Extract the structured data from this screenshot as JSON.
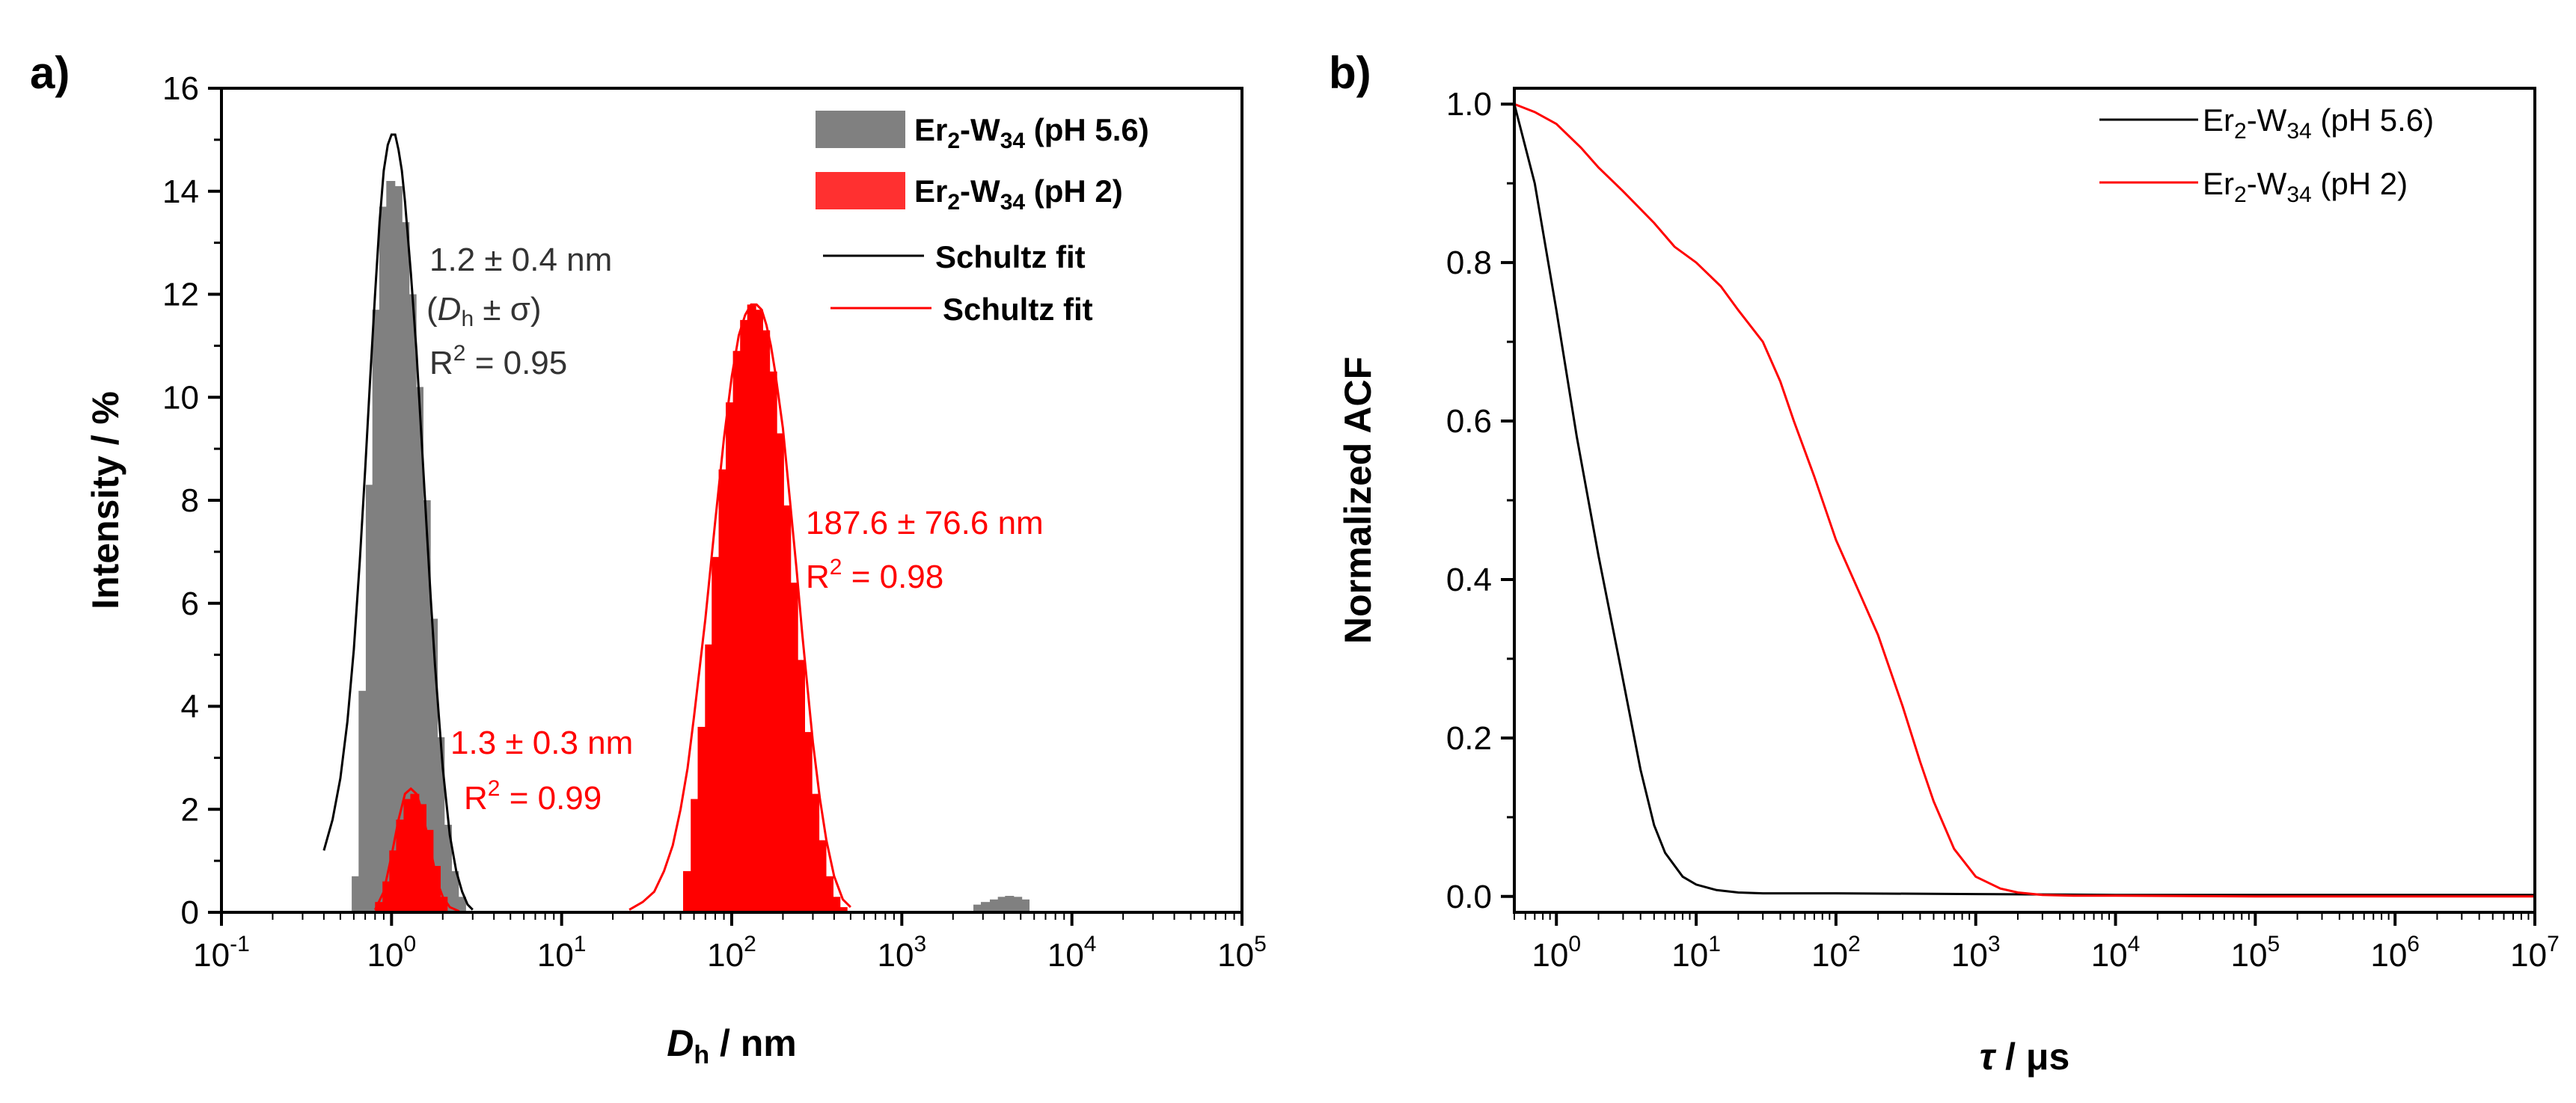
{
  "chart_data": [
    {
      "panel": "a)",
      "type": "bar",
      "xscale": "log",
      "xlim": [
        0.1,
        100000
      ],
      "ylim": [
        0,
        16
      ],
      "xlabel_main": "D",
      "xlabel_sub": "h",
      "xlabel_unit": " / nm",
      "ylabel": "Intensity / %",
      "xticks": [
        {
          "base": "10",
          "exp": "-1",
          "value": 0.1
        },
        {
          "base": "10",
          "exp": "0",
          "value": 1
        },
        {
          "base": "10",
          "exp": "1",
          "value": 10
        },
        {
          "base": "10",
          "exp": "2",
          "value": 100
        },
        {
          "base": "10",
          "exp": "3",
          "value": 1000
        },
        {
          "base": "10",
          "exp": "4",
          "value": 10000
        },
        {
          "base": "10",
          "exp": "5",
          "value": 100000
        }
      ],
      "yticks": [
        "0",
        "2",
        "4",
        "6",
        "8",
        "10",
        "12",
        "14",
        "16"
      ],
      "series": [
        {
          "name": "Er2-W34 (pH 5.6)",
          "color": "#808080",
          "x": [
            0.62,
            0.68,
            0.75,
            0.82,
            0.9,
            0.99,
            1.09,
            1.2,
            1.32,
            1.45,
            1.6,
            1.76,
            1.93,
            2.13,
            2.34,
            2.58,
            2800,
            3100,
            3500,
            3900,
            4300,
            4800,
            5300
          ],
          "values": [
            0.7,
            4.3,
            8.3,
            11.7,
            13.7,
            14.2,
            14.1,
            13.4,
            12.0,
            10.2,
            8.0,
            5.7,
            3.4,
            1.7,
            0.8,
            0.3,
            0.15,
            0.2,
            0.25,
            0.3,
            0.32,
            0.3,
            0.25
          ]
        },
        {
          "name": "Er2-W34 (pH 2)",
          "color": "#ff0000",
          "x": [
            0.85,
            0.94,
            1.03,
            1.13,
            1.25,
            1.37,
            1.51,
            1.66,
            1.83,
            2.01,
            55,
            61,
            67,
            74,
            81,
            89,
            98,
            108,
            119,
            131,
            144,
            158,
            174,
            191,
            210,
            231,
            254,
            280,
            308,
            339,
            373,
            410,
            451
          ],
          "values": [
            0.2,
            0.6,
            1.2,
            1.8,
            2.2,
            2.3,
            2.1,
            1.6,
            0.9,
            0.3,
            0.8,
            2.2,
            3.6,
            5.2,
            6.9,
            8.6,
            9.9,
            10.9,
            11.5,
            11.8,
            11.7,
            11.3,
            10.5,
            9.3,
            7.9,
            6.4,
            4.9,
            3.5,
            2.3,
            1.4,
            0.7,
            0.3,
            0.1
          ]
        }
      ],
      "fits": [
        {
          "name": "Schultz fit",
          "color": "#000000",
          "x": [
            0.4,
            0.45,
            0.5,
            0.55,
            0.6,
            0.65,
            0.7,
            0.75,
            0.8,
            0.85,
            0.9,
            0.95,
            1.0,
            1.05,
            1.1,
            1.15,
            1.2,
            1.3,
            1.4,
            1.5,
            1.6,
            1.7,
            1.8,
            2.0,
            2.2,
            2.4,
            2.6,
            2.8,
            3.0
          ],
          "values": [
            1.2,
            1.8,
            2.6,
            3.7,
            5.1,
            6.8,
            8.6,
            10.4,
            12.0,
            13.4,
            14.4,
            14.9,
            15.1,
            15.1,
            14.8,
            14.4,
            13.8,
            12.4,
            10.9,
            9.2,
            7.6,
            6.1,
            4.8,
            2.8,
            1.5,
            0.8,
            0.4,
            0.15,
            0.05
          ]
        },
        {
          "name": "Schultz fit",
          "color": "#ff0000",
          "x": [
            0.8,
            0.9,
            1.0,
            1.1,
            1.2,
            1.3,
            1.4,
            1.5,
            1.6,
            1.7,
            1.8,
            1.9,
            2.0,
            2.2,
            2.5,
            25,
            30,
            35,
            40,
            45,
            50,
            55,
            60,
            70,
            80,
            90,
            100,
            110,
            120,
            130,
            140,
            150,
            160,
            170,
            180,
            200,
            220,
            240,
            260,
            280,
            300,
            330,
            360,
            400,
            450,
            500
          ],
          "values": [
            0.05,
            0.4,
            1.1,
            1.8,
            2.3,
            2.4,
            2.3,
            2.0,
            1.6,
            1.2,
            0.8,
            0.5,
            0.3,
            0.1,
            0.02,
            0.05,
            0.2,
            0.4,
            0.8,
            1.3,
            2.0,
            2.8,
            3.8,
            5.7,
            7.6,
            9.2,
            10.4,
            11.2,
            11.6,
            11.8,
            11.8,
            11.7,
            11.4,
            11.0,
            10.5,
            9.4,
            8.0,
            6.7,
            5.4,
            4.3,
            3.3,
            2.2,
            1.4,
            0.7,
            0.25,
            0.1
          ]
        }
      ],
      "legend": [
        {
          "type": "bar",
          "color": "#808080",
          "prefix": "Er",
          "sub1": "2",
          "mid": "-W",
          "sub2": "34",
          "suffix": " (pH 5.6)"
        },
        {
          "type": "bar",
          "color": "#ff0000",
          "prefix": "Er",
          "sub1": "2",
          "mid": "-W",
          "sub2": "34",
          "suffix": " (pH 2)"
        },
        {
          "type": "line",
          "color": "#000000",
          "label": "Schultz fit"
        },
        {
          "type": "line",
          "color": "#ff0000",
          "label": "Schultz fit"
        }
      ],
      "annotations": {
        "gray_value": "1.2 ± 0.4 nm",
        "gray_def_open": "(",
        "gray_def_d": "D",
        "gray_def_sub": "h",
        "gray_def_rest": " ± σ)",
        "gray_r2": "R",
        "gray_r2_exp": "2",
        "gray_r2_val": " = 0.95",
        "red_small_value": "1.3 ± 0.3 nm",
        "red_small_r2": "R",
        "red_small_r2_exp": "2",
        "red_small_r2_val": " = 0.99",
        "red_large_value": "187.6 ± 76.6 nm",
        "red_large_r2": "R",
        "red_large_r2_exp": "2",
        "red_large_r2_val": " = 0.98"
      }
    },
    {
      "panel": "b)",
      "type": "line",
      "xscale": "log",
      "xlim": [
        0.5,
        10000000
      ],
      "ylim": [
        -0.02,
        1.02
      ],
      "xlabel_tau": "τ",
      "xlabel_unit": " / μs",
      "ylabel": "Normalized ACF",
      "xticks": [
        {
          "base": "10",
          "exp": "0",
          "value": 1
        },
        {
          "base": "10",
          "exp": "1",
          "value": 10
        },
        {
          "base": "10",
          "exp": "2",
          "value": 100
        },
        {
          "base": "10",
          "exp": "3",
          "value": 1000
        },
        {
          "base": "10",
          "exp": "4",
          "value": 10000
        },
        {
          "base": "10",
          "exp": "5",
          "value": 100000
        },
        {
          "base": "10",
          "exp": "6",
          "value": 1000000
        },
        {
          "base": "10",
          "exp": "7",
          "value": 10000000
        }
      ],
      "yticks": [
        "0.0",
        "0.2",
        "0.4",
        "0.6",
        "0.8",
        "1.0"
      ],
      "series": [
        {
          "name": "Er2-W34 (pH 5.6)",
          "color": "#000000",
          "x": [
            0.5,
            0.7,
            1.0,
            1.4,
            2.0,
            2.8,
            4.0,
            5.0,
            6.0,
            8.0,
            10,
            14,
            20,
            30,
            50,
            100,
            1000,
            10000,
            100000,
            1000000,
            10000000
          ],
          "values": [
            1.0,
            0.9,
            0.74,
            0.58,
            0.43,
            0.3,
            0.16,
            0.09,
            0.055,
            0.025,
            0.015,
            0.008,
            0.005,
            0.004,
            0.004,
            0.004,
            0.003,
            0.002,
            0.002,
            0.002,
            0.002
          ]
        },
        {
          "name": "Er2-W34 (pH 2)",
          "color": "#ff0000",
          "x": [
            0.5,
            0.7,
            1.0,
            1.5,
            2.0,
            3.0,
            5.0,
            7.0,
            10,
            15,
            20,
            30,
            40,
            50,
            70,
            100,
            150,
            200,
            300,
            400,
            500,
            700,
            1000,
            1500,
            2000,
            3000,
            5000,
            10000,
            100000,
            1000000,
            10000000
          ],
          "values": [
            1.0,
            0.99,
            0.975,
            0.945,
            0.92,
            0.89,
            0.85,
            0.82,
            0.8,
            0.77,
            0.74,
            0.7,
            0.65,
            0.6,
            0.53,
            0.45,
            0.38,
            0.33,
            0.24,
            0.17,
            0.12,
            0.06,
            0.025,
            0.01,
            0.005,
            0.002,
            0.001,
            0.001,
            0.0,
            0.0,
            0.0
          ]
        }
      ],
      "legend": [
        {
          "type": "line",
          "color": "#000000",
          "prefix": "Er",
          "sub1": "2",
          "mid": "-W",
          "sub2": "34",
          "suffix": " (pH 5.6)"
        },
        {
          "type": "line",
          "color": "#ff0000",
          "prefix": "Er",
          "sub1": "2",
          "mid": "-W",
          "sub2": "34",
          "suffix": " (pH 2)"
        }
      ]
    }
  ]
}
